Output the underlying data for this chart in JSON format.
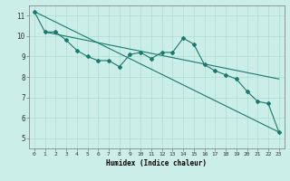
{
  "xlabel": "Humidex (Indice chaleur)",
  "background_color": "#cceee8",
  "grid_color": "#aaddcc",
  "line_color": "#1a7a6e",
  "xlim": [
    -0.5,
    23.5
  ],
  "ylim": [
    4.5,
    11.5
  ],
  "xtick_labels": [
    "0",
    "1",
    "2",
    "3",
    "4",
    "5",
    "6",
    "7",
    "8",
    "9",
    "10",
    "11",
    "12",
    "13",
    "14",
    "15",
    "16",
    "17",
    "18",
    "19",
    "20",
    "21",
    "22",
    "23"
  ],
  "ytick_labels": [
    "5",
    "6",
    "7",
    "8",
    "9",
    "10",
    "11"
  ],
  "series_x": [
    0,
    1,
    2,
    3,
    4,
    5,
    6,
    7,
    8,
    9,
    10,
    11,
    12,
    13,
    14,
    15,
    16,
    17,
    18,
    19,
    20,
    21,
    22,
    23
  ],
  "series_y": [
    11.2,
    10.2,
    10.2,
    9.8,
    9.3,
    9.0,
    8.8,
    8.8,
    8.5,
    9.1,
    9.2,
    8.9,
    9.2,
    9.2,
    9.9,
    9.6,
    8.6,
    8.3,
    8.1,
    7.9,
    7.3,
    6.8,
    6.7,
    5.3
  ],
  "line1_x": [
    0,
    23
  ],
  "line1_y": [
    11.2,
    5.3
  ],
  "line2_x": [
    1,
    23
  ],
  "line2_y": [
    10.2,
    7.9
  ]
}
